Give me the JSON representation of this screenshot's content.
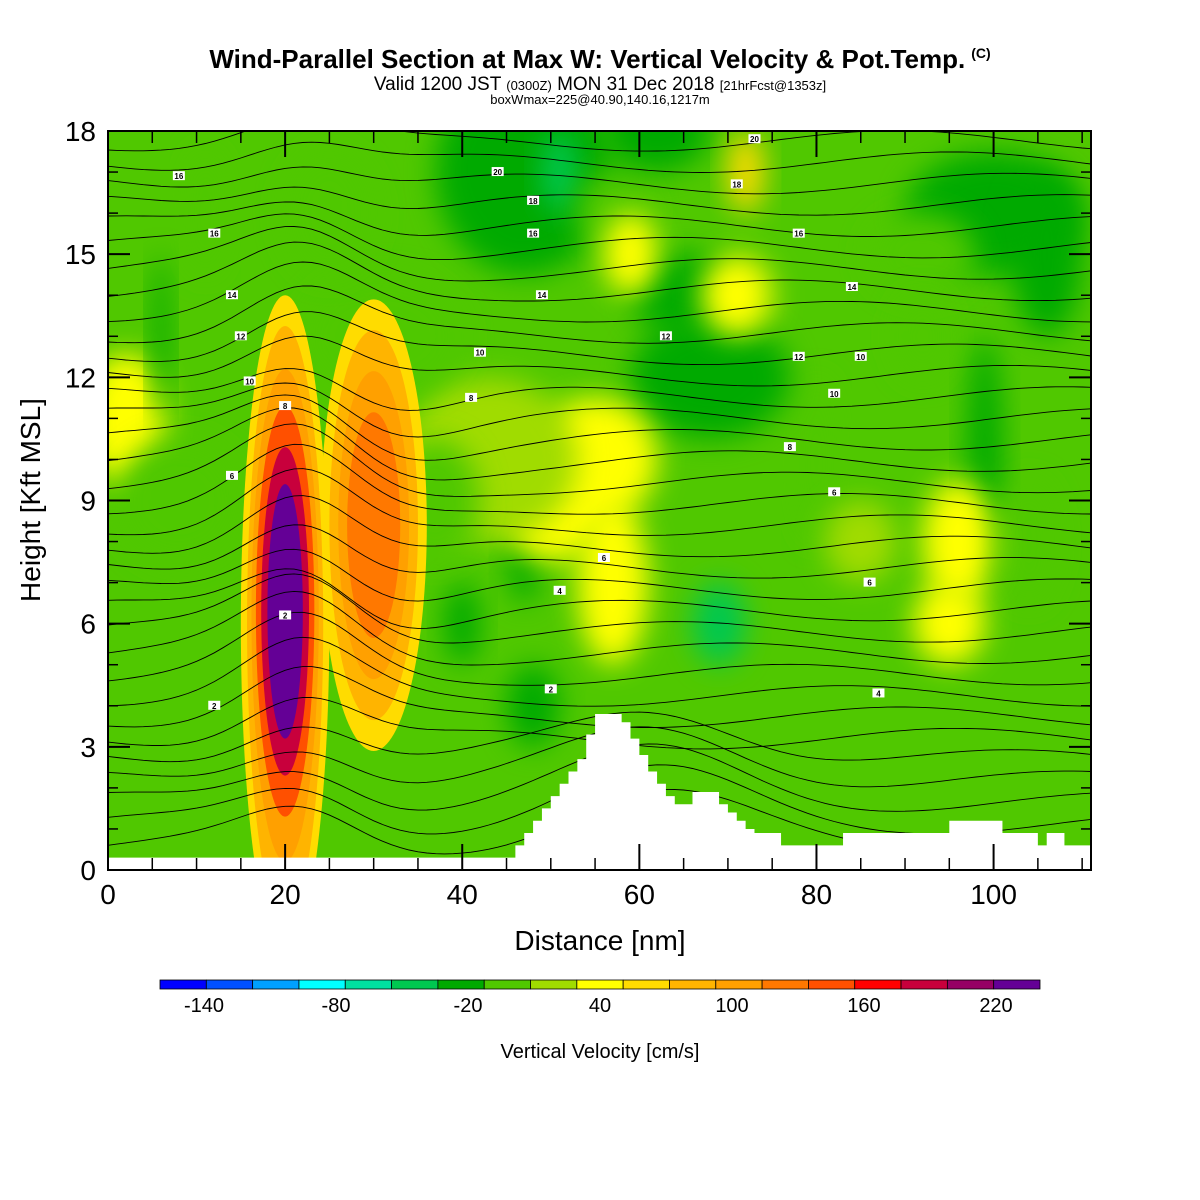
{
  "header": {
    "title": "Wind-Parallel Section at Max W: Vertical Velocity & Pot.Temp.",
    "title_mark": "(C)",
    "subtitle_a": "Valid 1200 JST",
    "subtitle_b": "(0300Z)",
    "subtitle_c": "MON 31 Dec 2018",
    "subtitle_d": "[21hrFcst@1353z]",
    "subtitle2": "boxWmax=225@40.90,140.16,1217m"
  },
  "chart_data": {
    "type": "heatmap",
    "xlabel": "Distance [nm]",
    "ylabel": "Height [Kft MSL]",
    "xlim": [
      0,
      111
    ],
    "ylim": [
      0,
      18
    ],
    "xticks": [
      "0",
      "20",
      "40",
      "60",
      "80",
      "100"
    ],
    "yticks": [
      "0",
      "3",
      "6",
      "9",
      "12",
      "15",
      "18"
    ],
    "colorbar": {
      "label": "Vertical Velocity [cm/s]",
      "min": -160,
      "max": 240,
      "step": 20,
      "tick_labels": [
        "-140",
        "-80",
        "-20",
        "40",
        "100",
        "160",
        "220"
      ],
      "tick_values": [
        -140,
        -80,
        -20,
        40,
        100,
        160,
        220
      ],
      "colors": [
        "#0000ff",
        "#0050ff",
        "#00a0ff",
        "#00ffff",
        "#00e0a0",
        "#00c850",
        "#00aa00",
        "#50c800",
        "#a0dc00",
        "#ffff00",
        "#ffdc00",
        "#ffb400",
        "#ffa000",
        "#ff7800",
        "#ff5000",
        "#ff0000",
        "#c8003c",
        "#960064",
        "#640096"
      ]
    },
    "terrain_kft": [
      [
        0,
        0.3
      ],
      [
        45,
        0.3
      ],
      [
        46,
        0.6
      ],
      [
        47,
        0.9
      ],
      [
        48,
        1.2
      ],
      [
        49,
        1.5
      ],
      [
        50,
        1.8
      ],
      [
        51,
        2.1
      ],
      [
        52,
        2.4
      ],
      [
        53,
        2.7
      ],
      [
        54,
        3.3
      ],
      [
        55,
        3.8
      ],
      [
        56,
        3.8
      ],
      [
        57,
        3.8
      ],
      [
        58,
        3.6
      ],
      [
        59,
        3.2
      ],
      [
        60,
        2.8
      ],
      [
        61,
        2.4
      ],
      [
        62,
        2.1
      ],
      [
        63,
        1.8
      ],
      [
        64,
        1.6
      ],
      [
        65,
        1.6
      ],
      [
        66,
        1.9
      ],
      [
        68,
        1.9
      ],
      [
        69,
        1.6
      ],
      [
        70,
        1.4
      ],
      [
        71,
        1.2
      ],
      [
        72,
        1.0
      ],
      [
        73,
        0.9
      ],
      [
        75,
        0.9
      ],
      [
        76,
        0.6
      ],
      [
        82,
        0.6
      ],
      [
        83,
        0.9
      ],
      [
        94,
        0.9
      ],
      [
        95,
        1.2
      ],
      [
        100,
        1.2
      ],
      [
        101,
        0.9
      ],
      [
        104,
        0.9
      ],
      [
        105,
        0.6
      ],
      [
        106,
        0.9
      ],
      [
        108,
        0.6
      ],
      [
        111,
        0.6
      ]
    ],
    "updraft_cores": [
      {
        "x": 20,
        "y": 6.0,
        "peak_cm_s": 225
      },
      {
        "x": 29,
        "y": 8.5,
        "peak_cm_s": 110
      },
      {
        "x": 71,
        "y": 17.0,
        "peak_cm_s": 45
      }
    ],
    "theta_contour_labels": [
      "2",
      "2",
      "2",
      "4",
      "4",
      "6",
      "6",
      "6",
      "6",
      "8",
      "8",
      "8",
      "10",
      "10",
      "10",
      "10",
      "12",
      "12",
      "12",
      "14",
      "14",
      "14",
      "16",
      "16",
      "16",
      "16",
      "18",
      "18",
      "20",
      "20"
    ]
  }
}
